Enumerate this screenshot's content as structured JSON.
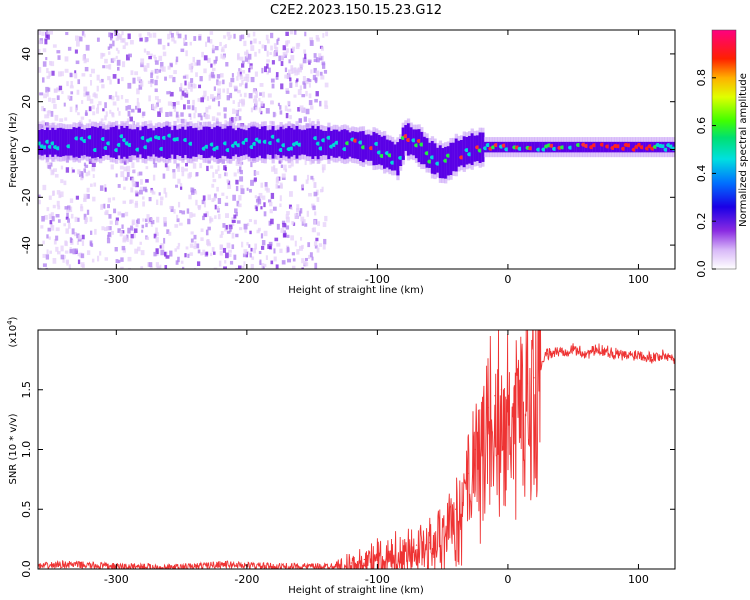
{
  "title": "C2E2.2023.150.15.23.G12",
  "colors": {
    "snr_line": "#ee3333",
    "signal_band": "#5a00e6",
    "noise_light": "#e6d0fa",
    "noise_mid": "#b080f0",
    "noise_dark": "#7a20e0"
  },
  "chart_data": [
    {
      "type": "heatmap",
      "name": "spectrogram",
      "xlabel": "Height of straight line (km)",
      "ylabel": "Frequency (Hz)",
      "xlim": [
        -360,
        128
      ],
      "ylim": [
        -50,
        50
      ],
      "xticks": [
        -300,
        -200,
        -100,
        0,
        100
      ],
      "xtick_labels": [
        "-300",
        "-200",
        "-100",
        "0",
        "100"
      ],
      "yticks": [
        -40,
        -20,
        0,
        20,
        40
      ],
      "ytick_labels": [
        "-40",
        "-20",
        "0",
        "20",
        "40"
      ],
      "colorbar": {
        "label": "Normalized spectral amplitude",
        "range": [
          0,
          1
        ],
        "ticks": [
          0.0,
          0.2,
          0.4,
          0.6,
          0.8
        ],
        "tick_labels": [
          "0.0",
          "0.2",
          "0.4",
          "0.6",
          "0.8"
        ]
      },
      "band_center_hz": [
        [
          -360,
          3
        ],
        [
          -250,
          3
        ],
        [
          -150,
          3
        ],
        [
          -120,
          2
        ],
        [
          -100,
          0
        ],
        [
          -85,
          -4
        ],
        [
          -80,
          5
        ],
        [
          -70,
          2
        ],
        [
          -60,
          -3
        ],
        [
          -50,
          -6
        ],
        [
          -40,
          -2
        ],
        [
          -30,
          0
        ],
        [
          -20,
          1
        ],
        [
          0,
          1
        ],
        [
          50,
          1
        ],
        [
          100,
          1
        ],
        [
          128,
          1
        ]
      ]
    },
    {
      "type": "line",
      "name": "snr",
      "xlabel": "Height of straight line (km)",
      "ylabel": "SNR (10 * v/v)",
      "multiplier_label": "(x10",
      "multiplier_exp": "4",
      "xlim": [
        -360,
        128
      ],
      "ylim": [
        0,
        2.0
      ],
      "xticks": [
        -300,
        -200,
        -100,
        0,
        100
      ],
      "xtick_labels": [
        "-300",
        "-200",
        "-100",
        "0",
        "100"
      ],
      "yticks": [
        0.0,
        0.5,
        1.0,
        1.5
      ],
      "ytick_labels": [
        "0.0",
        "0.5",
        "1.0",
        "1.5"
      ],
      "series": [
        {
          "name": "SNR",
          "x": [
            -360,
            -340,
            -320,
            -300,
            -280,
            -260,
            -240,
            -220,
            -200,
            -180,
            -160,
            -140,
            -120,
            -110,
            -100,
            -90,
            -80,
            -70,
            -60,
            -50,
            -40,
            -30,
            -25,
            -20,
            -15,
            -10,
            -5,
            0,
            5,
            10,
            15,
            20,
            25,
            30,
            40,
            50,
            60,
            70,
            80,
            90,
            100,
            110,
            120,
            128
          ],
          "y": [
            0.02,
            0.04,
            0.03,
            0.02,
            0.02,
            0.01,
            0.02,
            0.04,
            0.03,
            0.02,
            0.02,
            0.02,
            0.05,
            0.08,
            0.12,
            0.15,
            0.17,
            0.2,
            0.22,
            0.35,
            0.5,
            0.8,
            1.0,
            1.2,
            1.35,
            1.45,
            1.5,
            1.4,
            1.45,
            1.5,
            1.55,
            1.6,
            1.7,
            1.8,
            1.82,
            1.84,
            1.8,
            1.84,
            1.81,
            1.78,
            1.8,
            1.77,
            1.79,
            1.76
          ]
        }
      ]
    }
  ]
}
